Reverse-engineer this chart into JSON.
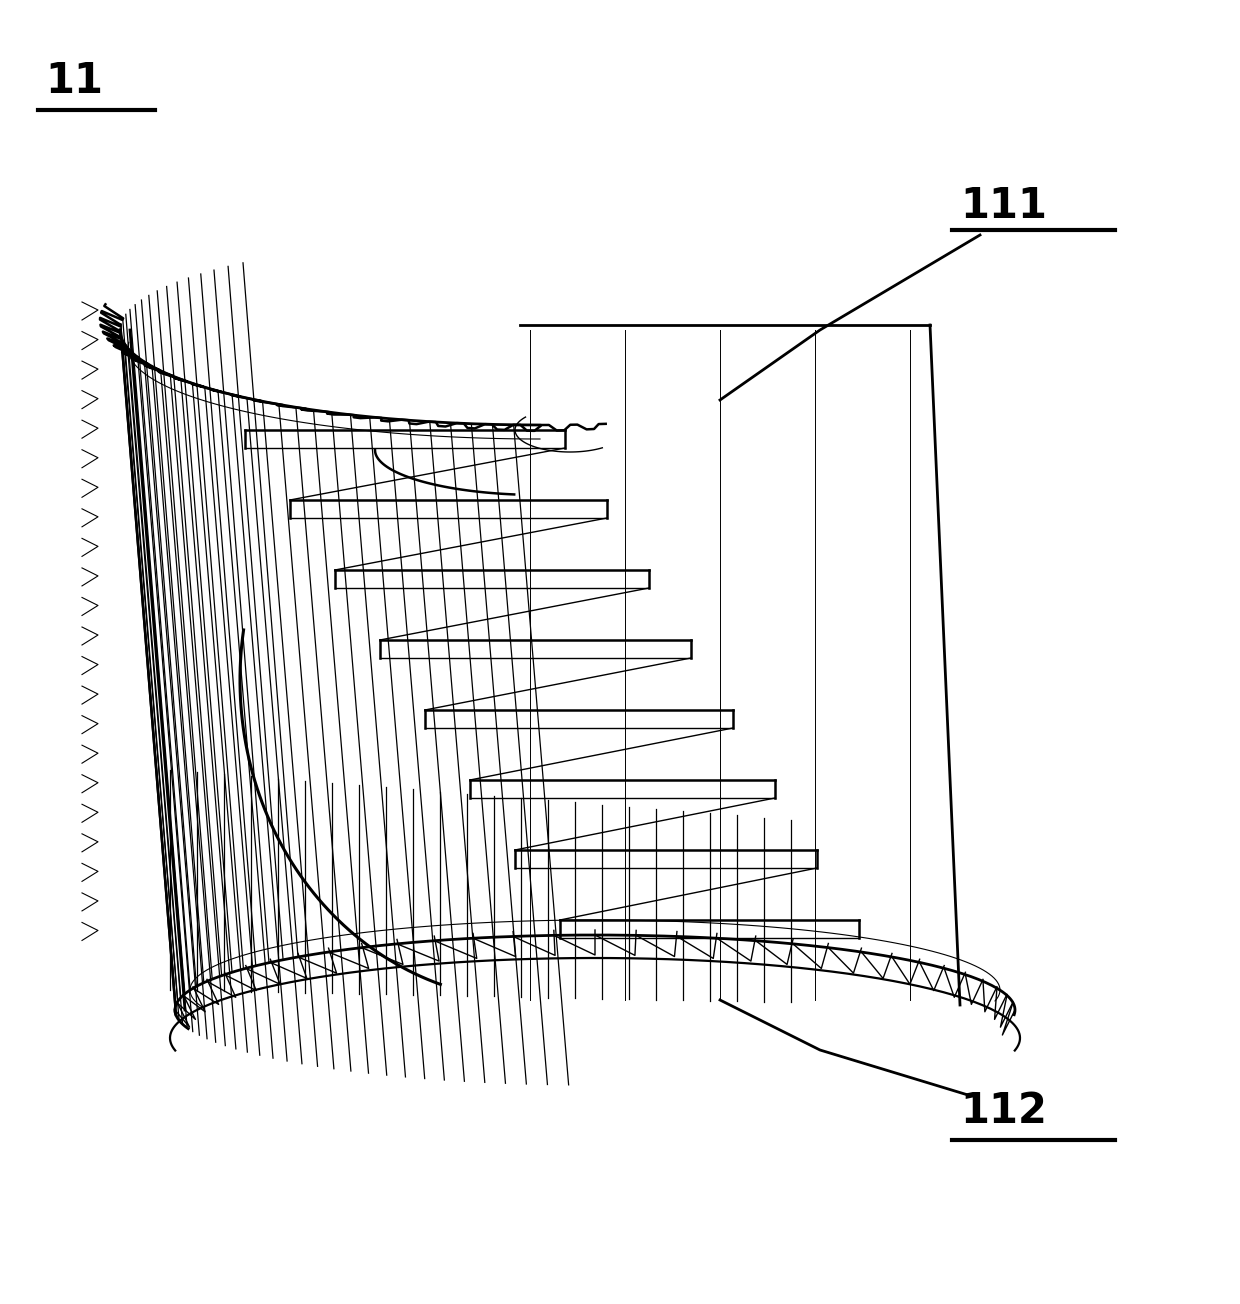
{
  "bg_color": "#ffffff",
  "line_color": "#000000",
  "label_11": "11",
  "label_111": "111",
  "label_112": "112",
  "lw_main": 2.0,
  "lw_thin": 1.0,
  "font_size": 30,
  "fig_w": 12.4,
  "fig_h": 13.04
}
